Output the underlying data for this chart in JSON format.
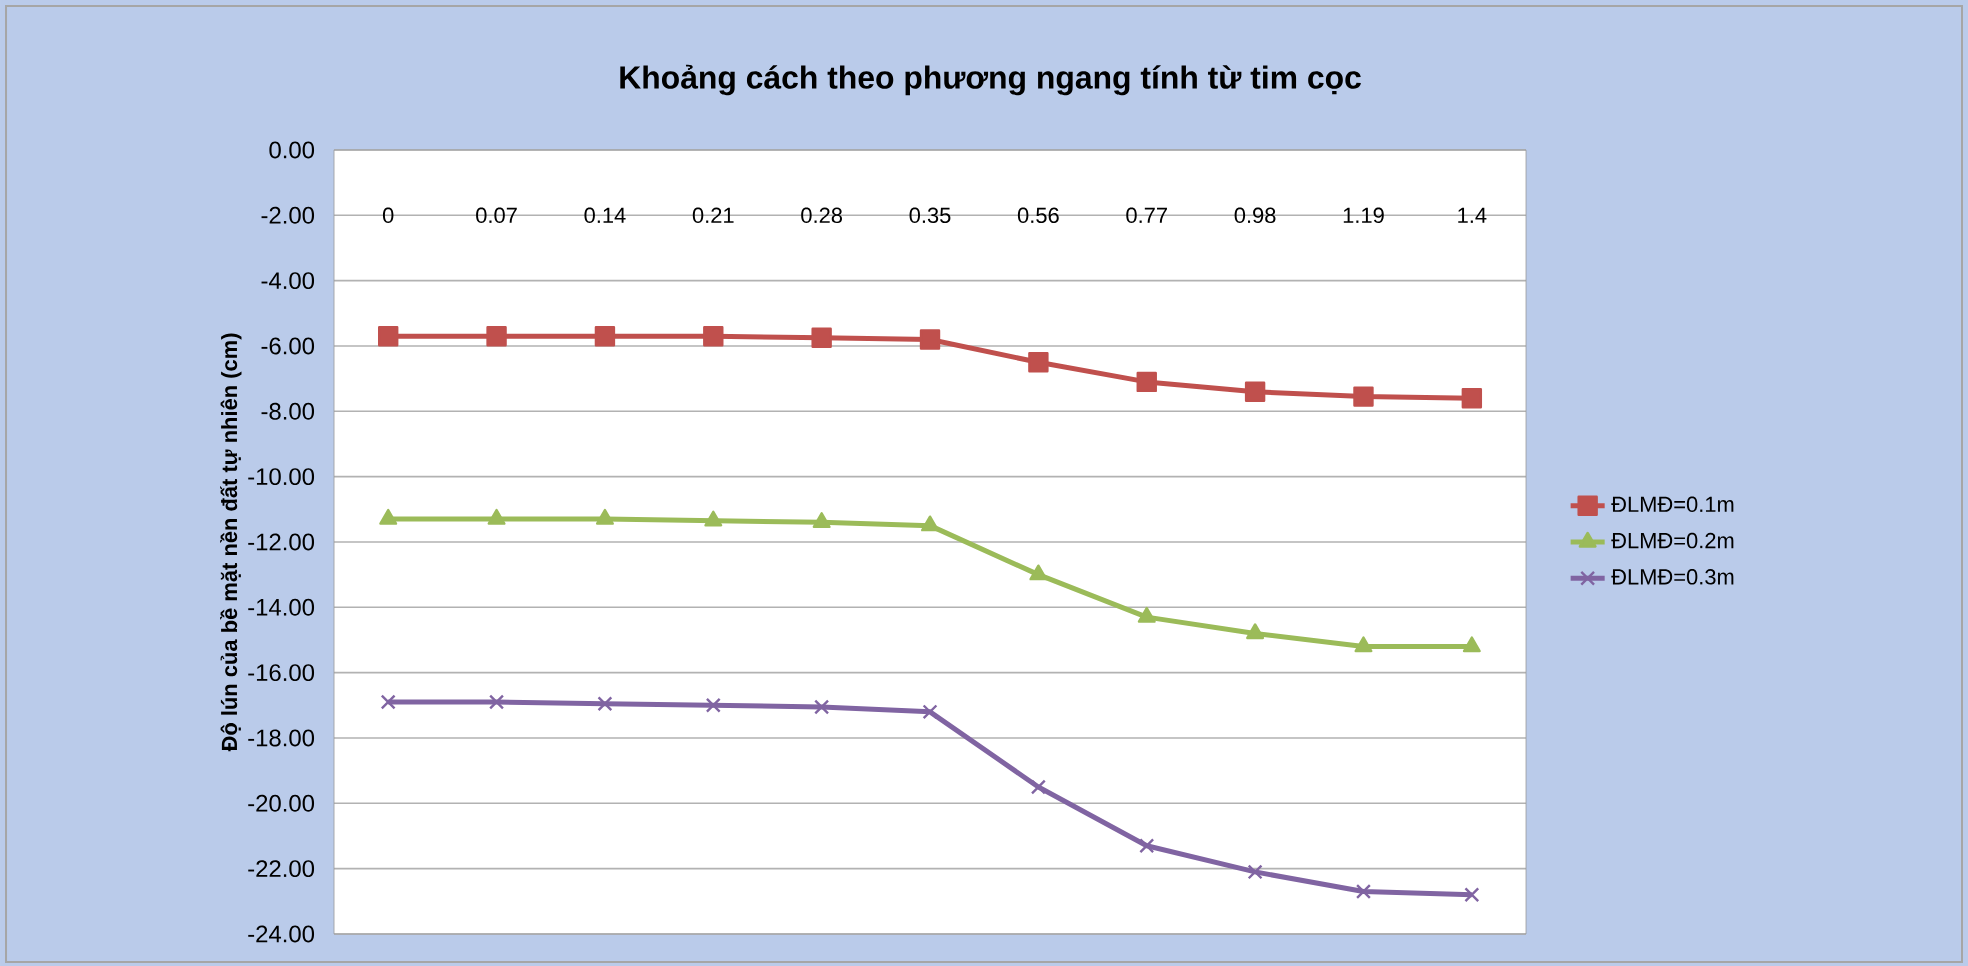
{
  "chart_data": {
    "type": "line",
    "title": "Khoảng cách theo phương ngang tính từ tim cọc",
    "ylabel": "Độ lún của bề mặt nền đất tự nhiên (cm)",
    "categories": [
      "0",
      "0.07",
      "0.14",
      "0.21",
      "0.28",
      "0.35",
      "0.56",
      "0.77",
      "0.98",
      "1.19",
      "1.4"
    ],
    "series": [
      {
        "name": "ĐLMĐ=0.1m",
        "color": "#c0504d",
        "marker": "square",
        "values": [
          -5.7,
          -5.7,
          -5.7,
          -5.7,
          -5.75,
          -5.8,
          -6.5,
          -7.1,
          -7.4,
          -7.55,
          -7.6
        ]
      },
      {
        "name": "ĐLMĐ=0.2m",
        "color": "#9bbb59",
        "marker": "triangle",
        "values": [
          -11.3,
          -11.3,
          -11.3,
          -11.35,
          -11.4,
          -11.5,
          -13.0,
          -14.3,
          -14.8,
          -15.2,
          -15.2
        ]
      },
      {
        "name": "ĐLMĐ=0.3m",
        "color": "#8064a2",
        "marker": "cross",
        "values": [
          -16.9,
          -16.9,
          -16.95,
          -17.0,
          -17.05,
          -17.2,
          -19.5,
          -21.3,
          -22.1,
          -22.7,
          -22.8
        ]
      }
    ],
    "ylim": [
      -24,
      0
    ],
    "yticks": [
      {
        "value": 0,
        "label": "0.00"
      },
      {
        "value": -2,
        "label": "-2.00"
      },
      {
        "value": -4,
        "label": "-4.00"
      },
      {
        "value": -6,
        "label": "-6.00"
      },
      {
        "value": -8,
        "label": "-8.00"
      },
      {
        "value": -10,
        "label": "-10.00"
      },
      {
        "value": -12,
        "label": "-12.00"
      },
      {
        "value": -14,
        "label": "-14.00"
      },
      {
        "value": -16,
        "label": "-16.00"
      },
      {
        "value": -18,
        "label": "-18.00"
      },
      {
        "value": -20,
        "label": "-20.00"
      },
      {
        "value": -22,
        "label": "-22.00"
      },
      {
        "value": -24,
        "label": "-24.00"
      }
    ],
    "grid": "y",
    "legend": "right",
    "line_style": "solid"
  }
}
